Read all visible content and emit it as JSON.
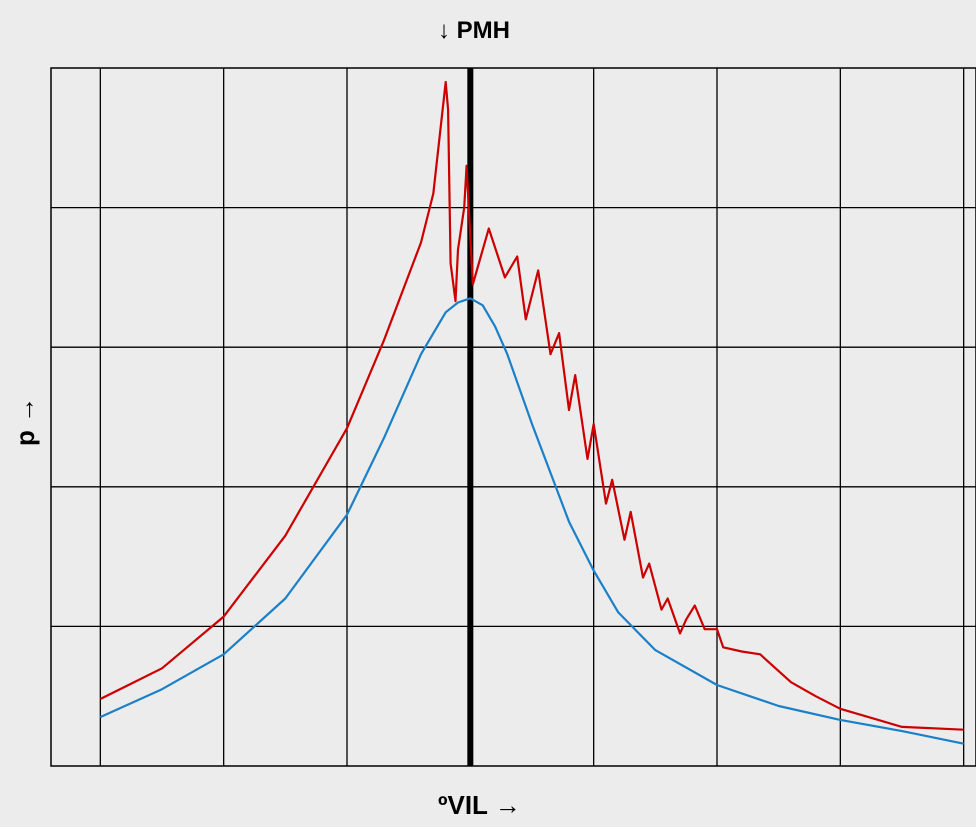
{
  "chart_data": {
    "type": "line",
    "title": "",
    "top_marker_label": "↓ PMH",
    "xlabel": "ºVIL →",
    "ylabel": "p →",
    "xlim": [
      -3.4,
      4.1
    ],
    "ylim": [
      0,
      5
    ],
    "grid": true,
    "legend": "none",
    "vertical_marker_x": 0,
    "series": [
      {
        "color": "#cc0000",
        "x": [
          -3.0,
          -2.5,
          -2.0,
          -1.5,
          -1.0,
          -0.7,
          -0.4,
          -0.3,
          -0.2,
          -0.18,
          -0.16,
          -0.12,
          -0.1,
          -0.05,
          -0.03,
          0.02,
          0.15,
          0.28,
          0.38,
          0.45,
          0.55,
          0.65,
          0.72,
          0.8,
          0.85,
          0.95,
          1.0,
          1.1,
          1.15,
          1.25,
          1.3,
          1.4,
          1.45,
          1.55,
          1.6,
          1.7,
          1.75,
          1.82,
          1.9,
          2.0,
          2.05,
          2.2,
          2.35,
          2.4,
          2.6,
          2.8,
          3.0,
          3.5,
          4.0
        ],
        "y": [
          0.48,
          0.7,
          1.07,
          1.65,
          2.42,
          3.05,
          3.75,
          4.1,
          4.9,
          4.7,
          3.6,
          3.33,
          3.7,
          4.0,
          4.3,
          3.45,
          3.85,
          3.5,
          3.65,
          3.2,
          3.55,
          2.95,
          3.1,
          2.55,
          2.8,
          2.2,
          2.45,
          1.88,
          2.05,
          1.62,
          1.82,
          1.35,
          1.45,
          1.12,
          1.2,
          0.95,
          1.05,
          1.15,
          0.98,
          0.98,
          0.85,
          0.82,
          0.8,
          0.76,
          0.6,
          0.5,
          0.41,
          0.28,
          0.26
        ]
      },
      {
        "color": "#1a80c8",
        "x": [
          -3.0,
          -2.5,
          -2.0,
          -1.5,
          -1.0,
          -0.7,
          -0.4,
          -0.2,
          -0.1,
          0.0,
          0.1,
          0.2,
          0.3,
          0.5,
          0.8,
          1.0,
          1.2,
          1.5,
          2.0,
          2.5,
          3.0,
          3.5,
          4.0
        ],
        "y": [
          0.35,
          0.55,
          0.8,
          1.2,
          1.8,
          2.35,
          2.95,
          3.25,
          3.32,
          3.35,
          3.3,
          3.15,
          2.95,
          2.45,
          1.75,
          1.4,
          1.1,
          0.83,
          0.58,
          0.43,
          0.33,
          0.25,
          0.16
        ]
      }
    ]
  }
}
